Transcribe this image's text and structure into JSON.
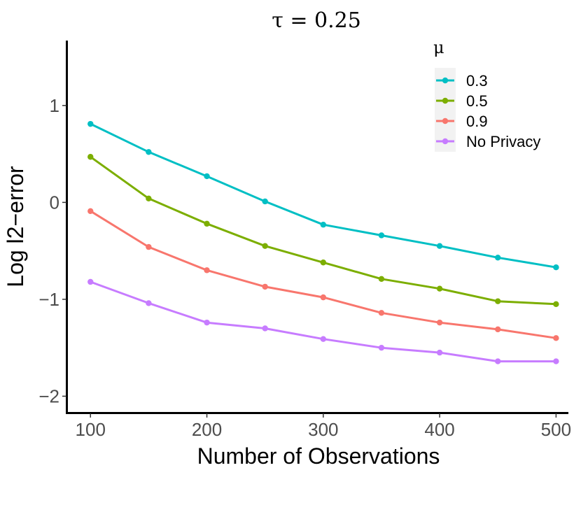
{
  "chart_data": {
    "type": "line",
    "title": "τ = 0.25",
    "xlabel": "Number of Observations",
    "ylabel": "Log l2−error",
    "x": [
      100,
      150,
      200,
      250,
      300,
      350,
      400,
      450,
      500
    ],
    "xticks": [
      100,
      200,
      300,
      400,
      500
    ],
    "xtick_labels": [
      "100",
      "200",
      "300",
      "400",
      "500"
    ],
    "yticks": [
      -2,
      -1,
      0,
      1
    ],
    "ytick_labels": [
      "−2",
      "−1",
      "0",
      "1"
    ],
    "xlim": [
      80,
      510
    ],
    "ylim": [
      -2.17,
      1.67
    ],
    "grid": false,
    "legend": {
      "title": "μ",
      "placement": "top-right"
    },
    "series": [
      {
        "name": "0.3",
        "color": "#00BFC4",
        "values": [
          0.81,
          0.52,
          0.27,
          0.01,
          -0.23,
          -0.34,
          -0.45,
          -0.57,
          -0.67
        ]
      },
      {
        "name": "0.5",
        "color": "#7CAE00",
        "values": [
          0.47,
          0.04,
          -0.22,
          -0.45,
          -0.62,
          -0.79,
          -0.89,
          -1.02,
          -1.05
        ]
      },
      {
        "name": "0.9",
        "color": "#F8766D",
        "values": [
          -0.09,
          -0.46,
          -0.7,
          -0.87,
          -0.98,
          -1.14,
          -1.24,
          -1.31,
          -1.4
        ]
      },
      {
        "name": "No Privacy",
        "color": "#C77CFF",
        "values": [
          -0.82,
          -1.04,
          -1.24,
          -1.3,
          -1.41,
          -1.5,
          -1.55,
          -1.64,
          -1.64
        ]
      }
    ]
  }
}
